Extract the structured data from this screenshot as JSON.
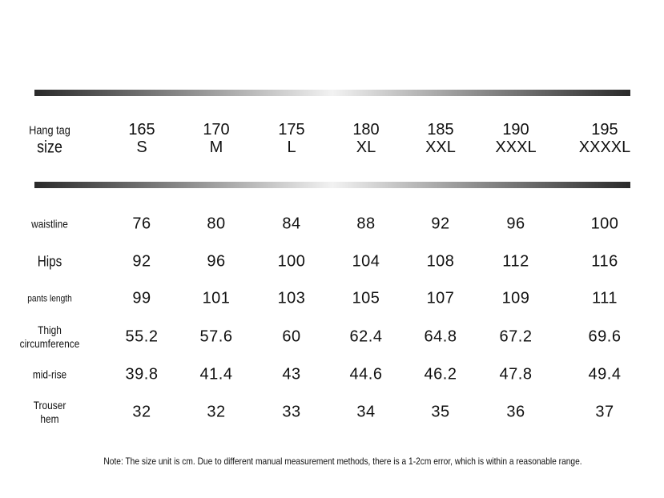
{
  "table": {
    "header": {
      "label": [
        "Hang tag",
        "size"
      ],
      "columns": [
        {
          "height": 165,
          "size": "S"
        },
        {
          "height": 170,
          "size": "M"
        },
        {
          "height": 175,
          "size": "L"
        },
        {
          "height": 180,
          "size": "XL"
        },
        {
          "height": 185,
          "size": "XXL"
        },
        {
          "height": 190,
          "size": "XXXL"
        },
        {
          "height": 195,
          "size": "XXXXL"
        }
      ]
    },
    "rows": [
      {
        "label": [
          "waistline"
        ],
        "values": [
          76,
          80,
          84,
          88,
          92,
          96,
          100
        ]
      },
      {
        "label": [
          "Hips"
        ],
        "values": [
          92,
          96,
          100,
          104,
          108,
          112,
          116
        ]
      },
      {
        "label": [
          "pants length"
        ],
        "values": [
          99,
          101,
          103,
          105,
          107,
          109,
          111
        ]
      },
      {
        "label": [
          "Thigh",
          "circumference"
        ],
        "values": [
          55.2,
          57.6,
          60,
          62.4,
          64.8,
          67.2,
          69.6
        ]
      },
      {
        "label": [
          "mid-rise"
        ],
        "values": [
          39.8,
          41.4,
          43,
          44.6,
          46.2,
          47.8,
          49.4
        ]
      },
      {
        "label": [
          "Trouser",
          "hem"
        ],
        "values": [
          32,
          32,
          33,
          34,
          35,
          36,
          37
        ]
      }
    ]
  },
  "note": "Note: The size unit is cm. Due to different manual measurement methods, there is a 1-2cm error, which is within a reasonable range."
}
